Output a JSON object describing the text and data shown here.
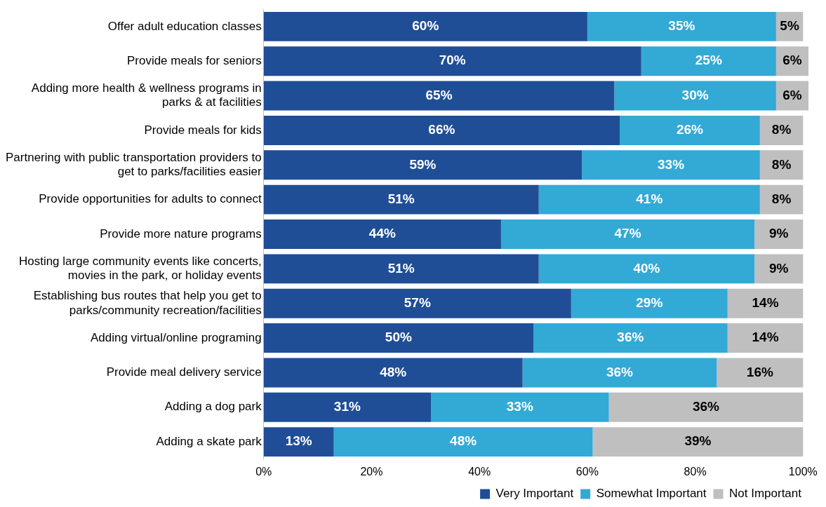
{
  "chart_data": {
    "type": "bar",
    "orientation": "horizontal",
    "stacked": true,
    "categories": [
      "Offer adult education classes",
      "Provide meals for seniors",
      "Adding more health & wellness programs in parks & at facilities",
      "Provide meals for kids",
      "Partnering with public transportation providers to get to parks/facilities easier",
      "Provide opportunities for adults to connect",
      "Provide more nature programs",
      "Hosting large community events like concerts, movies in the park, or holiday events",
      "Establishing bus routes that help you get to parks/community recreation/facilities",
      "Adding virtual/online programing",
      "Provide meal delivery service",
      "Adding a dog park",
      "Adding a skate park"
    ],
    "series": [
      {
        "name": "Very Important",
        "color": "#1f4e96",
        "values": [
          60,
          70,
          65,
          66,
          59,
          51,
          44,
          51,
          57,
          50,
          48,
          31,
          13
        ],
        "value_labels": [
          "60%",
          "70%",
          "65%",
          "66%",
          "59%",
          "51%",
          "44%",
          "51%",
          "57%",
          "50%",
          "48%",
          "31%",
          "13%"
        ]
      },
      {
        "name": "Somewhat Important",
        "color": "#33a9d6",
        "values": [
          35,
          25,
          30,
          26,
          33,
          41,
          47,
          40,
          29,
          36,
          36,
          33,
          48
        ],
        "value_labels": [
          "35%",
          "25%",
          "30%",
          "26%",
          "33%",
          "41%",
          "47%",
          "40%",
          "29%",
          "36%",
          "36%",
          "33%",
          "48%"
        ]
      },
      {
        "name": "Not Important",
        "color": "#bfbfbf",
        "values": [
          5,
          6,
          6,
          8,
          8,
          8,
          9,
          9,
          14,
          14,
          16,
          36,
          39
        ],
        "value_labels": [
          "5%",
          "6%",
          "6%",
          "8%",
          "8%",
          "8%",
          "9%",
          "9%",
          "14%",
          "14%",
          "16%",
          "36%",
          "39%"
        ]
      }
    ],
    "xlim": [
      0,
      101
    ],
    "xticks": [
      {
        "value": 0,
        "label": "0%"
      },
      {
        "value": 20,
        "label": "20%"
      },
      {
        "value": 40,
        "label": "40%"
      },
      {
        "value": 60,
        "label": "60%"
      },
      {
        "value": 80,
        "label": "80%"
      },
      {
        "value": 100,
        "label": "100%"
      }
    ],
    "legend": "bottom right",
    "grid": false
  }
}
